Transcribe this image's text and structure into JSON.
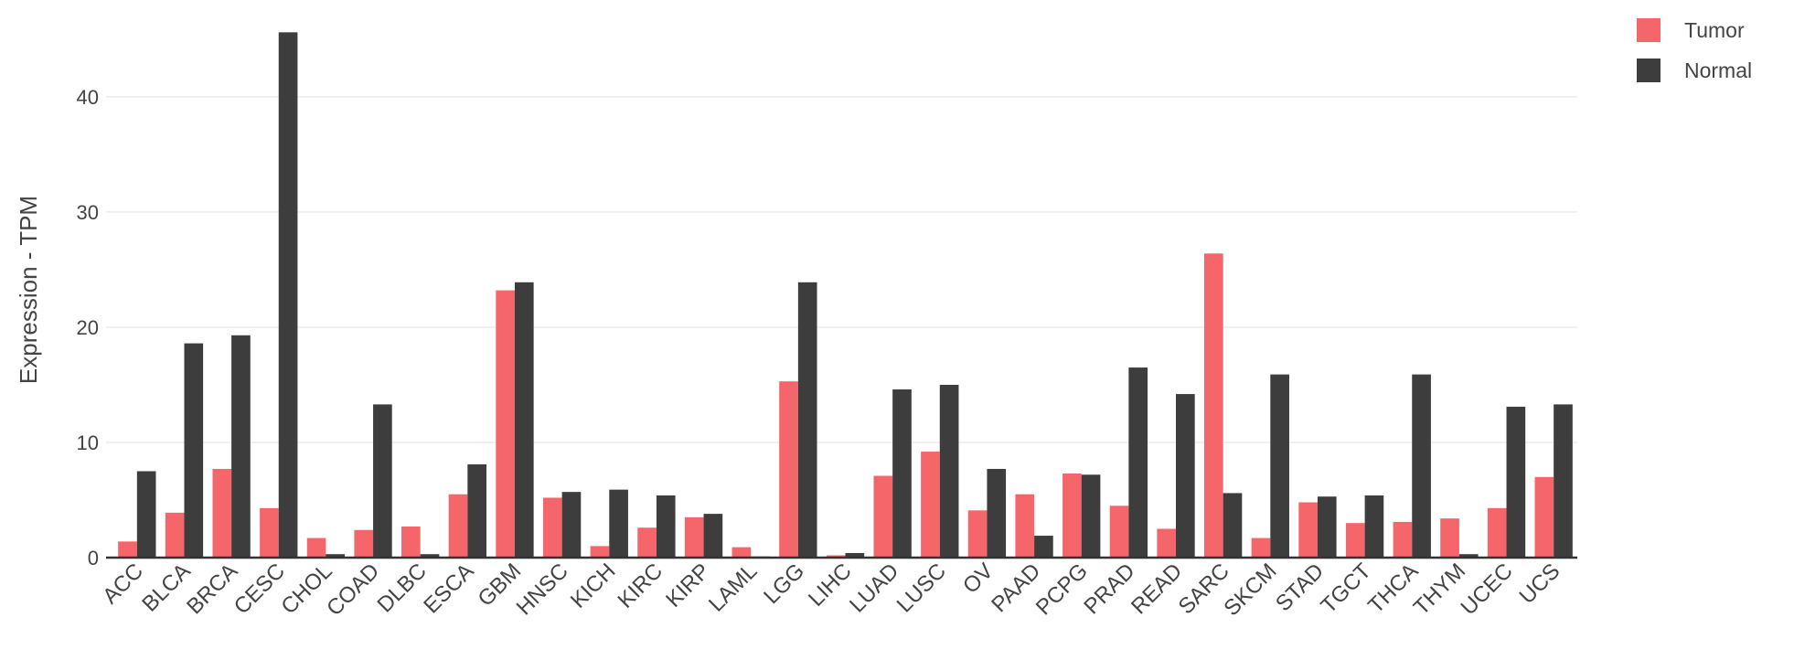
{
  "chart_data": {
    "type": "bar",
    "y_label": "Expression - TPM",
    "categories": [
      "ACC",
      "BLCA",
      "BRCA",
      "CESC",
      "CHOL",
      "COAD",
      "DLBC",
      "ESCA",
      "GBM",
      "HNSC",
      "KICH",
      "KIRC",
      "KIRP",
      "LAML",
      "LGG",
      "LIHC",
      "LUAD",
      "LUSC",
      "OV",
      "PAAD",
      "PCPG",
      "PRAD",
      "READ",
      "SARC",
      "SKCM",
      "STAD",
      "TGCT",
      "THCA",
      "THYM",
      "UCEC",
      "UCS"
    ],
    "series": [
      {
        "name": "Tumor",
        "color": "#f5666b",
        "values": [
          1.4,
          3.9,
          7.7,
          4.3,
          1.7,
          2.4,
          2.7,
          5.5,
          23.2,
          5.2,
          1.0,
          2.6,
          3.5,
          0.9,
          15.3,
          0.2,
          7.1,
          9.2,
          4.1,
          5.5,
          7.3,
          4.5,
          2.5,
          26.4,
          1.7,
          4.8,
          3.0,
          3.1,
          3.4,
          4.3,
          7.0
        ]
      },
      {
        "name": "Normal",
        "color": "#3d3d3d",
        "values": [
          7.5,
          18.6,
          19.3,
          45.6,
          0.3,
          13.3,
          0.3,
          8.1,
          23.9,
          5.7,
          5.9,
          5.4,
          3.8,
          0.1,
          23.9,
          0.4,
          14.6,
          15.0,
          7.7,
          1.9,
          7.2,
          16.5,
          14.2,
          5.6,
          15.9,
          5.3,
          5.4,
          15.9,
          0.3,
          13.1,
          13.3
        ]
      }
    ],
    "ylim": [
      0,
      46.5
    ],
    "yticks": [
      0,
      10,
      20,
      30,
      40
    ],
    "grid": true,
    "legend": "top-right"
  }
}
